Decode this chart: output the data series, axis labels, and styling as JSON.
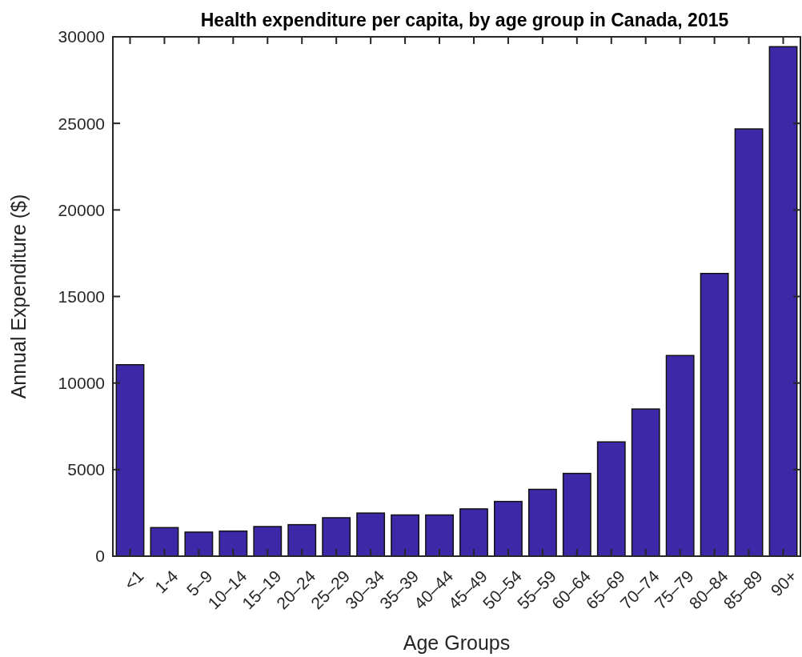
{
  "chart_data": {
    "type": "bar",
    "title": "Health expenditure per capita, by age group in Canada, 2015",
    "xlabel": "Age Groups",
    "ylabel": "Annual Expenditure ($)",
    "categories": [
      "<1",
      "1-4",
      "5–9",
      "10–14",
      "15–19",
      "20–24",
      "25–29",
      "30–34",
      "35–39",
      "40–44",
      "45–49",
      "50–54",
      "55–59",
      "60–64",
      "65–69",
      "70–74",
      "75–79",
      "80–84",
      "85–89",
      "90+"
    ],
    "values": [
      11060,
      1650,
      1390,
      1450,
      1710,
      1820,
      2220,
      2490,
      2380,
      2380,
      2730,
      3160,
      3860,
      4780,
      6600,
      8500,
      11590,
      16330,
      24680,
      29430
    ],
    "color": "#3d28a8",
    "ylim": [
      0,
      30000
    ],
    "yticks": [
      0,
      5000,
      10000,
      15000,
      20000,
      25000,
      30000
    ],
    "grid": false
  }
}
